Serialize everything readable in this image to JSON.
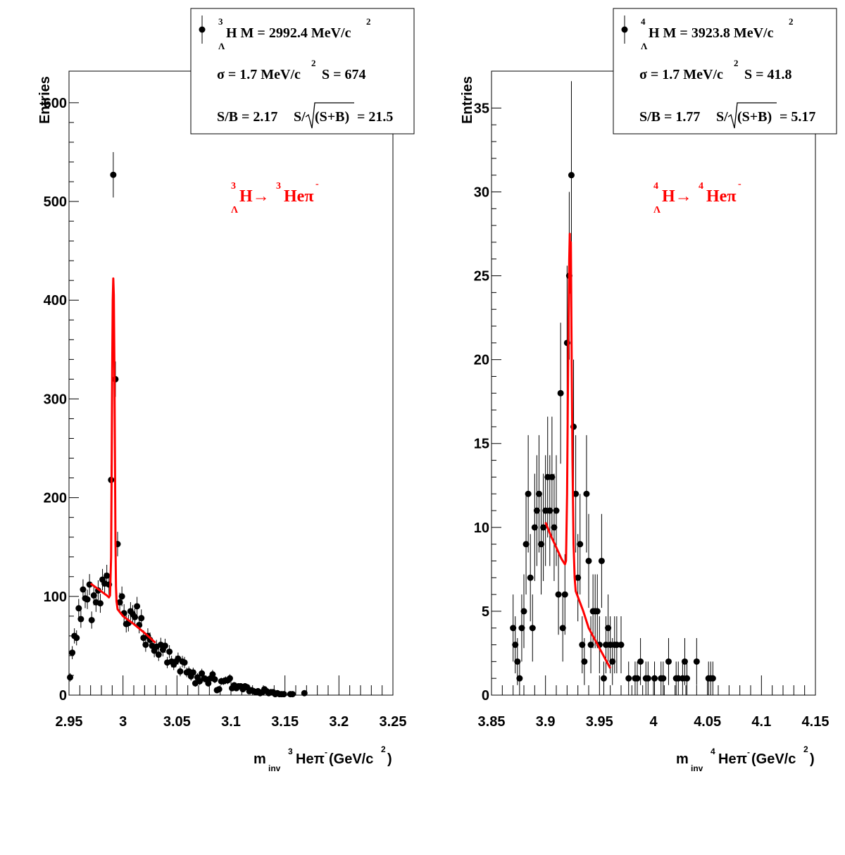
{
  "chart_data": [
    {
      "type": "scatter",
      "y_label": "Entries",
      "x_label": {
        "main": "m",
        "sub": "inv",
        "nucleon": "3",
        "text": "Heπ",
        "charge": "-",
        "unit": "(GeV/c",
        "power": "2",
        "close": ")"
      },
      "stats": {
        "mass": {
          "nucleon": "3",
          "hyperon": "Λ",
          "text": "H M = 2992.4 MeV/c",
          "power": "2"
        },
        "sigma": {
          "text": "σ = 1.7 MeV/c",
          "power": "2",
          "signal": "S =  674"
        },
        "ratio": {
          "sb": "S/B = 2.17",
          "sqrt_pre": "S/",
          "radicand": "(S+B)",
          "result": "= 21.5"
        }
      },
      "decay": {
        "nucleon": "3",
        "hyperon": "Λ",
        "parent": "H→",
        "daughter_nucleon": "3",
        "daughter": "Heπ",
        "charge": "-"
      },
      "xlim": [
        2.95,
        3.25
      ],
      "xticks": [
        2.95,
        3,
        3.05,
        3.1,
        3.15,
        3.2,
        3.25
      ],
      "ylim": [
        0,
        632
      ],
      "yticks": [
        0,
        100,
        200,
        300,
        400,
        500,
        600
      ],
      "series": [
        {
          "color": "#000000",
          "x": [
            2.951,
            2.953,
            2.955,
            2.957,
            2.959,
            2.961,
            2.963,
            2.965,
            2.967,
            2.969,
            2.971,
            2.973,
            2.975,
            2.977,
            2.979,
            2.981,
            2.983,
            2.985,
            2.987,
            2.989,
            2.991,
            2.993,
            2.995,
            2.997,
            2.999,
            3.001,
            3.003,
            3.005,
            3.007,
            3.009,
            3.011,
            3.013,
            3.015,
            3.017,
            3.019,
            3.021,
            3.023,
            3.025,
            3.027,
            3.029,
            3.031,
            3.033,
            3.035,
            3.037,
            3.039,
            3.041,
            3.043,
            3.045,
            3.047,
            3.049,
            3.051,
            3.053,
            3.055,
            3.057,
            3.059,
            3.061,
            3.063,
            3.065,
            3.067,
            3.069,
            3.071,
            3.073,
            3.075,
            3.077,
            3.079,
            3.081,
            3.083,
            3.085,
            3.087,
            3.089,
            3.091,
            3.093,
            3.095,
            3.097,
            3.099,
            3.101,
            3.103,
            3.105,
            3.107,
            3.109,
            3.111,
            3.113,
            3.115,
            3.117,
            3.119,
            3.121,
            3.123,
            3.125,
            3.127,
            3.129,
            3.131,
            3.133,
            3.135,
            3.137,
            3.139,
            3.141,
            3.143,
            3.145,
            3.147,
            3.149,
            3.155,
            3.157,
            3.168
          ],
          "values": [
            18,
            43,
            60,
            58,
            88,
            77,
            107,
            98,
            97,
            112,
            76,
            101,
            94,
            106,
            93,
            117,
            113,
            121,
            112,
            218,
            527,
            320,
            153,
            94,
            100,
            83,
            72,
            73,
            85,
            82,
            79,
            90,
            71,
            78,
            58,
            51,
            60,
            56,
            50,
            45,
            49,
            41,
            51,
            46,
            50,
            33,
            44,
            34,
            31,
            34,
            37,
            24,
            34,
            33,
            23,
            24,
            19,
            23,
            12,
            18,
            14,
            22,
            17,
            16,
            12,
            17,
            21,
            16,
            5,
            6,
            14,
            14,
            15,
            15,
            17,
            7,
            10,
            7,
            9,
            9,
            6,
            9,
            8,
            4,
            5,
            4,
            3,
            4,
            2,
            3,
            6,
            4,
            2,
            3,
            3,
            1,
            2,
            1,
            1,
            1,
            1,
            1,
            2
          ],
          "errors": [
            4.2,
            6.6,
            7.7,
            7.6,
            9.4,
            8.8,
            10.3,
            9.9,
            9.8,
            10.6,
            8.7,
            10.0,
            9.7,
            10.3,
            9.6,
            10.8,
            10.6,
            11.0,
            10.6,
            14.8,
            23.0,
            17.9,
            12.4,
            9.7,
            10.0,
            9.1,
            8.5,
            8.5,
            9.2,
            9.1,
            8.9,
            9.5,
            8.4,
            8.8,
            7.6,
            7.1,
            7.7,
            7.5,
            7.1,
            6.7,
            7.0,
            6.4,
            7.1,
            6.8,
            7.1,
            5.7,
            6.6,
            5.8,
            5.6,
            5.8,
            6.1,
            4.9,
            5.8,
            5.7,
            4.8,
            4.9,
            4.4,
            4.8,
            3.5,
            4.2,
            3.7,
            4.7,
            4.1,
            4.0,
            3.5,
            4.1,
            4.6,
            4.0,
            2.2,
            2.4,
            3.7,
            3.7,
            3.9,
            3.9,
            4.1,
            2.6,
            3.2,
            2.6,
            3.0,
            3.0,
            2.4,
            3.0,
            2.8,
            2.0,
            2.2,
            2.0,
            1.7,
            2.0,
            1.4,
            1.7,
            2.4,
            2.0,
            1.4,
            1.7,
            1.7,
            1.0,
            1.4,
            1.0,
            1.0,
            1.0,
            1.0,
            1.0,
            1.4
          ]
        },
        {
          "color": "#ff0000",
          "x": [
            2.97,
            2.975,
            2.98,
            2.985,
            2.987,
            2.988,
            2.989,
            2.9895,
            2.99,
            2.9905,
            2.991,
            2.9915,
            2.992,
            2.9925,
            2.993,
            2.9935,
            2.994,
            2.995,
            3.0,
            3.01,
            3.02,
            3.03
          ],
          "values": [
            113,
            109,
            105,
            101,
            99,
            101,
            140,
            230,
            330,
            400,
            422,
            405,
            340,
            250,
            160,
            110,
            95,
            87,
            80,
            72,
            63,
            53
          ]
        }
      ]
    },
    {
      "type": "scatter",
      "y_label": "Entries",
      "x_label": {
        "main": "m",
        "sub": "inv",
        "nucleon": "4",
        "text": "Heπ",
        "charge": "-",
        "unit": "(GeV/c",
        "power": "2",
        "close": ")"
      },
      "stats": {
        "mass": {
          "nucleon": "4",
          "hyperon": "Λ",
          "text": "H M = 3923.8 MeV/c",
          "power": "2"
        },
        "sigma": {
          "text": "σ = 1.7 MeV/c",
          "power": "2",
          "signal": "S = 41.8"
        },
        "ratio": {
          "sb": "S/B = 1.77",
          "sqrt_pre": "S/",
          "radicand": "(S+B)",
          "result": "= 5.17"
        }
      },
      "decay": {
        "nucleon": "4",
        "hyperon": "Λ",
        "parent": "H→",
        "daughter_nucleon": "4",
        "daughter": "Heπ",
        "charge": "-"
      },
      "xlim": [
        3.85,
        4.15
      ],
      "xticks": [
        3.85,
        3.9,
        3.95,
        4,
        4.05,
        4.1,
        4.15
      ],
      "ylim": [
        0,
        37.2
      ],
      "yticks": [
        0,
        5,
        10,
        15,
        20,
        25,
        30,
        35
      ],
      "series": [
        {
          "color": "#000000",
          "x": [
            3.87,
            3.872,
            3.874,
            3.876,
            3.878,
            3.88,
            3.882,
            3.884,
            3.886,
            3.888,
            3.89,
            3.892,
            3.894,
            3.896,
            3.898,
            3.9,
            3.902,
            3.904,
            3.906,
            3.908,
            3.91,
            3.912,
            3.914,
            3.916,
            3.918,
            3.92,
            3.922,
            3.924,
            3.926,
            3.928,
            3.93,
            3.932,
            3.934,
            3.936,
            3.938,
            3.94,
            3.942,
            3.944,
            3.946,
            3.948,
            3.95,
            3.952,
            3.954,
            3.956,
            3.958,
            3.96,
            3.962,
            3.964,
            3.966,
            3.97,
            3.977,
            3.983,
            3.985,
            3.988,
            3.993,
            3.995,
            4.001,
            4.007,
            4.009,
            4.014,
            4.021,
            4.023,
            4.027,
            4.029,
            4.031,
            4.04,
            4.051,
            4.053,
            4.055
          ],
          "values": [
            4,
            3,
            2,
            1,
            4,
            5,
            9,
            12,
            7,
            4,
            10,
            11,
            12,
            9,
            10,
            11,
            13,
            11,
            13,
            10,
            11,
            6,
            18,
            4,
            6,
            21,
            25,
            31,
            16,
            12,
            7,
            9,
            3,
            2,
            12,
            8,
            3,
            5,
            5,
            5,
            3,
            8,
            1,
            3,
            4,
            3,
            2,
            3,
            3,
            3,
            1,
            1,
            1,
            2,
            1,
            1,
            1,
            1,
            1,
            2,
            1,
            1,
            1,
            2,
            1,
            2,
            1,
            1,
            1
          ],
          "errors": [
            2.0,
            1.7,
            1.4,
            1.0,
            2.0,
            2.2,
            3.0,
            3.5,
            2.6,
            2.0,
            3.2,
            3.3,
            3.5,
            3.0,
            3.2,
            3.3,
            3.6,
            3.3,
            3.6,
            3.2,
            3.3,
            2.4,
            4.2,
            2.0,
            2.4,
            4.6,
            5.0,
            5.6,
            4.0,
            3.5,
            2.6,
            3.0,
            1.7,
            1.4,
            3.5,
            2.8,
            1.7,
            2.2,
            2.2,
            2.2,
            1.7,
            2.8,
            1.0,
            1.7,
            2.0,
            1.7,
            1.4,
            1.7,
            1.7,
            1.7,
            1.0,
            1.0,
            1.0,
            1.4,
            1.0,
            1.0,
            1.0,
            1.0,
            1.0,
            1.4,
            1.0,
            1.0,
            1.0,
            1.4,
            1.0,
            1.4,
            1.0,
            1.0,
            1.0
          ]
        },
        {
          "color": "#ff0000",
          "x": [
            3.9,
            3.905,
            3.91,
            3.915,
            3.918,
            3.919,
            3.92,
            3.921,
            3.922,
            3.9225,
            3.923,
            3.9235,
            3.924,
            3.925,
            3.926,
            3.927,
            3.928,
            3.935,
            3.94,
            3.95,
            3.96
          ],
          "values": [
            10.3,
            9.5,
            8.8,
            8.1,
            7.8,
            8.0,
            12,
            20,
            26,
            27.5,
            24,
            27,
            22,
            14,
            9,
            7,
            6.2,
            5.0,
            4.0,
            2.8,
            1.6
          ]
        }
      ]
    }
  ]
}
